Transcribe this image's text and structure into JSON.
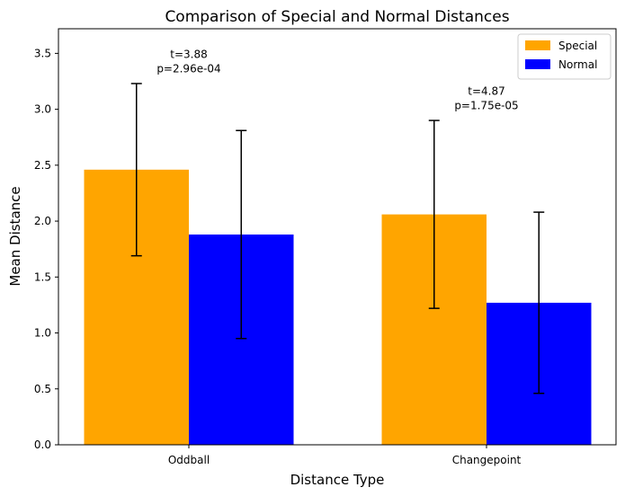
{
  "chart_data": {
    "type": "bar",
    "title": "Comparison of Special and Normal Distances",
    "xlabel": "Distance Type",
    "ylabel": "Mean Distance",
    "categories": [
      "Oddball",
      "Changepoint"
    ],
    "ylim": [
      0,
      3.72
    ],
    "yticks": [
      "0.0",
      "0.5",
      "1.0",
      "1.5",
      "2.0",
      "2.5",
      "3.0",
      "3.5"
    ],
    "grid": false,
    "legend_position": "top-right",
    "series": [
      {
        "name": "Special",
        "color": "#FFA500",
        "values": [
          2.46,
          2.06
        ],
        "errors": [
          0.77,
          0.84
        ]
      },
      {
        "name": "Normal",
        "color": "#0000FF",
        "values": [
          1.88,
          1.27
        ],
        "errors": [
          0.93,
          0.81
        ]
      }
    ],
    "annotations": [
      {
        "category": "Oddball",
        "lines": [
          "t=3.88",
          "p=2.96e-04"
        ]
      },
      {
        "category": "Changepoint",
        "lines": [
          "t=4.87",
          "p=1.75e-05"
        ]
      }
    ]
  }
}
